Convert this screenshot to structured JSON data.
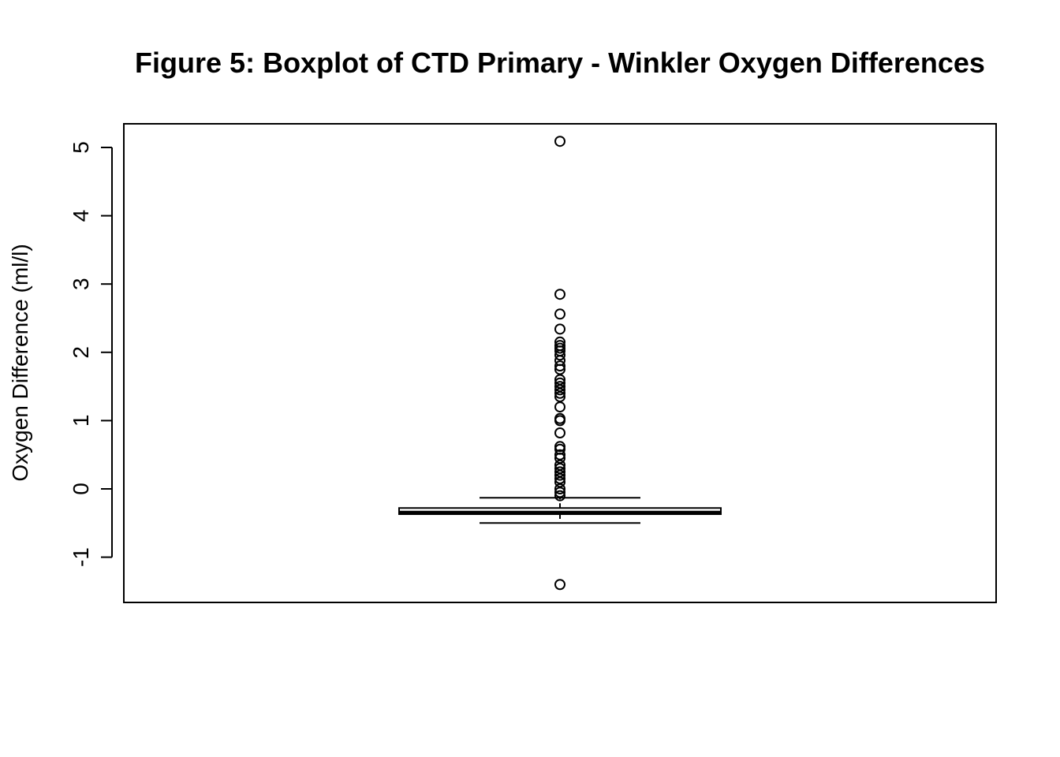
{
  "chart_data": {
    "type": "box",
    "title": "Figure 5: Boxplot of CTD Primary - Winkler Oxygen Differences",
    "xlabel": "",
    "ylabel": "Oxygen Difference (ml/l)",
    "ylim": [
      -1.65,
      5.35
    ],
    "y_ticks": [
      -1,
      0,
      1,
      2,
      3,
      4,
      5
    ],
    "y_tick_labels": [
      "-1",
      "0",
      "1",
      "2",
      "3",
      "4",
      "5"
    ],
    "grid": false,
    "box": {
      "lower_whisker": -0.5,
      "q1": -0.37,
      "median": -0.35,
      "q3": -0.28,
      "upper_whisker": -0.13
    },
    "outliers": [
      5.09,
      2.85,
      2.56,
      2.34,
      2.15,
      2.1,
      2.06,
      2.02,
      1.96,
      1.88,
      1.8,
      1.75,
      1.6,
      1.55,
      1.5,
      1.45,
      1.4,
      1.35,
      1.2,
      1.03,
      1.0,
      0.82,
      0.62,
      0.58,
      0.5,
      0.45,
      0.35,
      0.3,
      0.25,
      0.2,
      0.15,
      0.1,
      0.0,
      -0.05,
      -0.1,
      -1.4
    ]
  }
}
